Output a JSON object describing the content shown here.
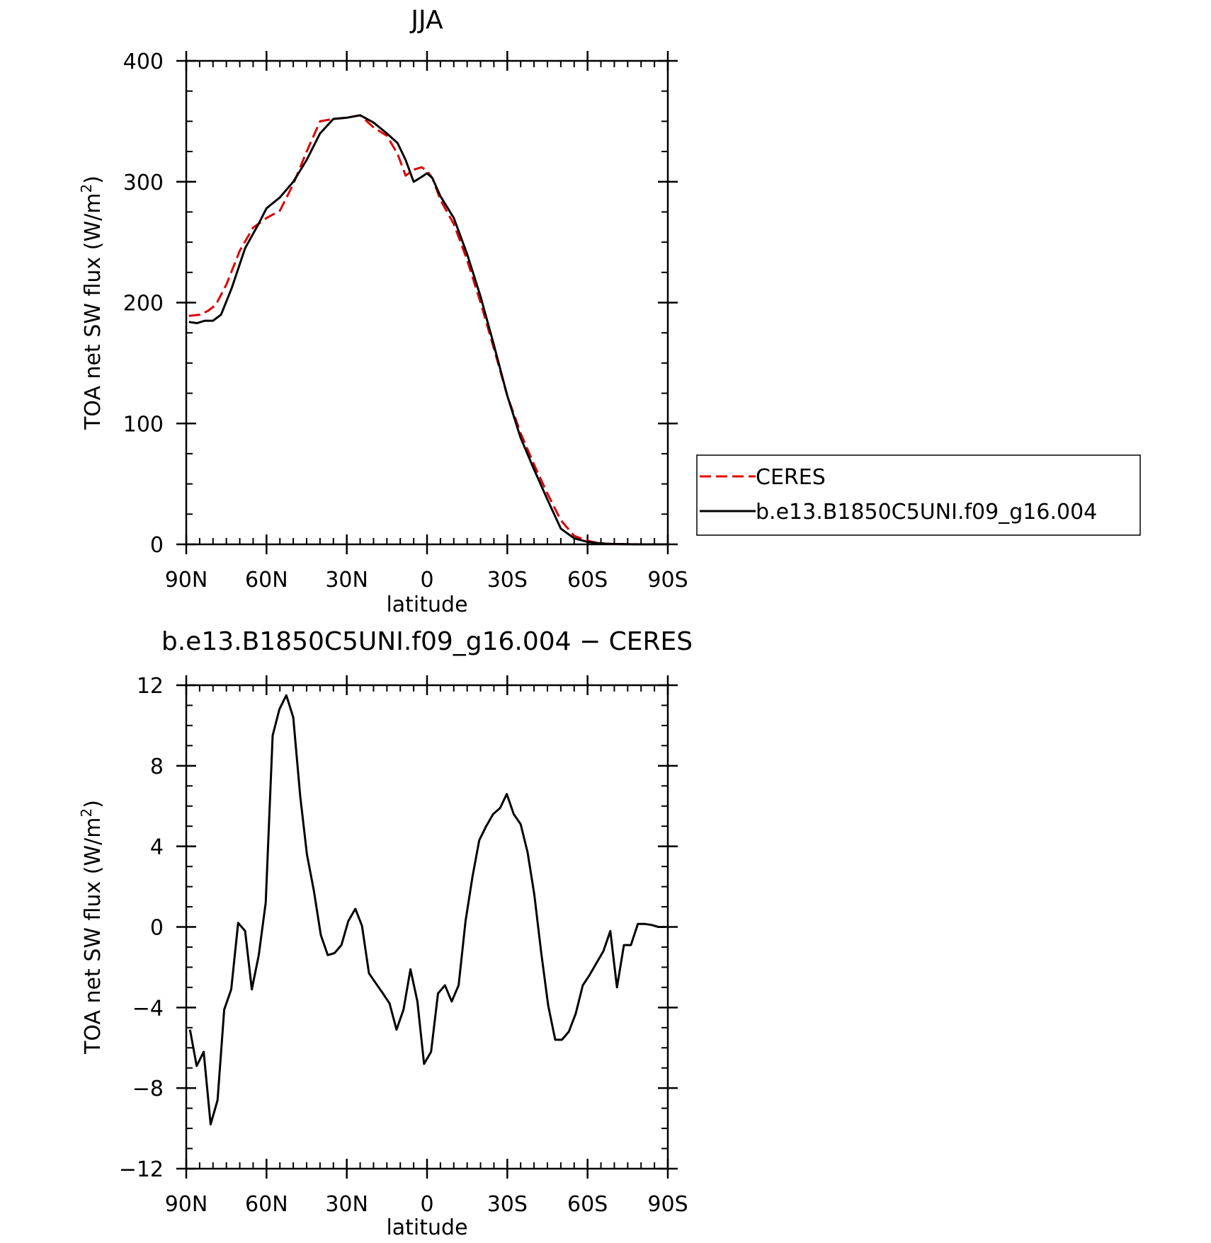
{
  "chart_data": [
    {
      "type": "line",
      "title": "JJA",
      "xlabel": "latitude",
      "ylabel": "TOA net SW flux (W/m",
      "ylabel_sup": "2",
      "ylabel_tail": ")",
      "xlim": [
        90,
        -90
      ],
      "ylim": [
        0,
        400
      ],
      "x_ticks": [
        90,
        60,
        30,
        0,
        -30,
        -60,
        -90
      ],
      "x_tick_labels": [
        "90N",
        "60N",
        "30N",
        "0",
        "30S",
        "60S",
        "90S"
      ],
      "y_ticks": [
        0,
        100,
        200,
        300,
        400
      ],
      "y_tick_labels": [
        "0",
        "100",
        "200",
        "300",
        "400"
      ],
      "legend": {
        "position": "right",
        "entries": [
          {
            "label": "CERES",
            "color": "#e00000",
            "style": "dashed"
          },
          {
            "label": "b.e13.B1850C5UNI.f09_g16.004",
            "color": "#000000",
            "style": "solid"
          }
        ]
      },
      "series": [
        {
          "name": "CERES",
          "color": "#e00000",
          "style": "dashed",
          "x": [
            89,
            85,
            82,
            79,
            75,
            70,
            65,
            60,
            55,
            50,
            45,
            40,
            35,
            30,
            25,
            20,
            15,
            11,
            8,
            5,
            2,
            0,
            -2,
            -5,
            -10,
            -15,
            -20,
            -25,
            -30,
            -35,
            -40,
            -45,
            -50,
            -55,
            -60,
            -64,
            -67,
            -70,
            -75,
            -80,
            -85,
            -90
          ],
          "y": [
            189,
            190,
            193,
            198,
            215,
            243,
            262,
            270,
            276,
            298,
            325,
            350,
            352,
            353,
            355,
            345,
            338,
            323,
            305,
            310,
            312,
            309,
            303,
            285,
            265,
            235,
            200,
            162,
            123,
            92,
            66,
            42,
            20,
            7,
            3,
            1,
            0.5,
            0.3,
            0.1,
            0,
            0,
            0
          ]
        },
        {
          "name": "b.e13.B1850C5UNI.f09_g16.004",
          "color": "#000000",
          "style": "solid",
          "x": [
            89,
            86,
            83,
            80,
            77,
            73,
            68,
            63,
            60,
            55,
            50,
            45,
            40,
            35,
            30,
            25,
            20,
            15,
            11,
            8,
            5,
            2,
            0,
            -2,
            -5,
            -10,
            -15,
            -20,
            -25,
            -30,
            -35,
            -40,
            -45,
            -50,
            -55,
            -60,
            -64,
            -67,
            -70,
            -75,
            -80,
            -85,
            -90
          ],
          "y": [
            184,
            183,
            185,
            185,
            190,
            212,
            245,
            265,
            278,
            287,
            300,
            318,
            340,
            352,
            353,
            355,
            349,
            340,
            332,
            318,
            300,
            304,
            307,
            303,
            288,
            270,
            240,
            205,
            165,
            123,
            88,
            62,
            37,
            13,
            5,
            2,
            1,
            0.5,
            0.3,
            0.1,
            0,
            0,
            0
          ]
        }
      ]
    },
    {
      "type": "line",
      "title": "b.e13.B1850C5UNI.f09_g16.004 − CERES",
      "xlabel": "latitude",
      "ylabel": "TOA net SW flux (W/m",
      "ylabel_sup": "2",
      "ylabel_tail": ")",
      "xlim": [
        90,
        -90
      ],
      "ylim": [
        -12,
        12
      ],
      "x_ticks": [
        90,
        60,
        30,
        0,
        -30,
        -60,
        -90
      ],
      "x_tick_labels": [
        "90N",
        "60N",
        "30N",
        "0",
        "30S",
        "60S",
        "90S"
      ],
      "y_ticks": [
        -12,
        -8,
        -4,
        0,
        4,
        8,
        12
      ],
      "y_tick_labels": [
        "−12",
        "−8",
        "−4",
        "0",
        "4",
        "8",
        "12"
      ],
      "series": [
        {
          "color": "#000000",
          "style": "solid",
          "x": [
            88.6,
            86.1,
            83.5,
            80.9,
            78.3,
            75.8,
            73.2,
            70.6,
            68.0,
            65.5,
            62.9,
            60.3,
            57.7,
            55.2,
            52.6,
            50.0,
            47.4,
            44.9,
            42.3,
            39.7,
            37.1,
            34.6,
            32.0,
            29.4,
            26.8,
            24.3,
            21.7,
            19.1,
            16.5,
            14.0,
            11.4,
            8.8,
            6.2,
            3.6,
            1.1,
            -1.5,
            -4.1,
            -6.7,
            -9.2,
            -11.8,
            -14.4,
            -17.0,
            -19.5,
            -22.1,
            -24.7,
            -27.3,
            -29.8,
            -32.4,
            -35.0,
            -37.6,
            -40.1,
            -42.7,
            -45.3,
            -47.9,
            -50.4,
            -53.0,
            -55.6,
            -58.2,
            -60.7,
            -63.3,
            -65.9,
            -68.5,
            -71.0,
            -73.6,
            -76.2,
            -78.8,
            -81.3,
            -83.9,
            -86.5,
            -89.1
          ],
          "y": [
            -5.1,
            -6.9,
            -6.2,
            -9.8,
            -8.6,
            -4.1,
            -3.1,
            0.2,
            -0.2,
            -3.1,
            -1.4,
            1.2,
            9.5,
            10.8,
            11.5,
            10.4,
            6.5,
            3.6,
            1.8,
            -0.4,
            -1.4,
            -1.3,
            -0.9,
            0.3,
            0.9,
            0.05,
            -2.3,
            -2.8,
            -3.3,
            -3.8,
            -5.1,
            -4.1,
            -2.1,
            -3.7,
            -6.8,
            -6.2,
            -3.3,
            -2.9,
            -3.7,
            -2.9,
            0.3,
            2.5,
            4.3,
            5.0,
            5.6,
            5.9,
            6.6,
            5.6,
            5.1,
            3.7,
            1.6,
            -1.3,
            -3.9,
            -5.6,
            -5.6,
            -5.2,
            -4.3,
            -2.9,
            -2.4,
            -1.8,
            -1.2,
            -0.2,
            -3.0,
            -0.9,
            -0.9,
            0.15,
            0.15,
            0.1,
            0.0,
            0.0
          ]
        }
      ]
    }
  ]
}
